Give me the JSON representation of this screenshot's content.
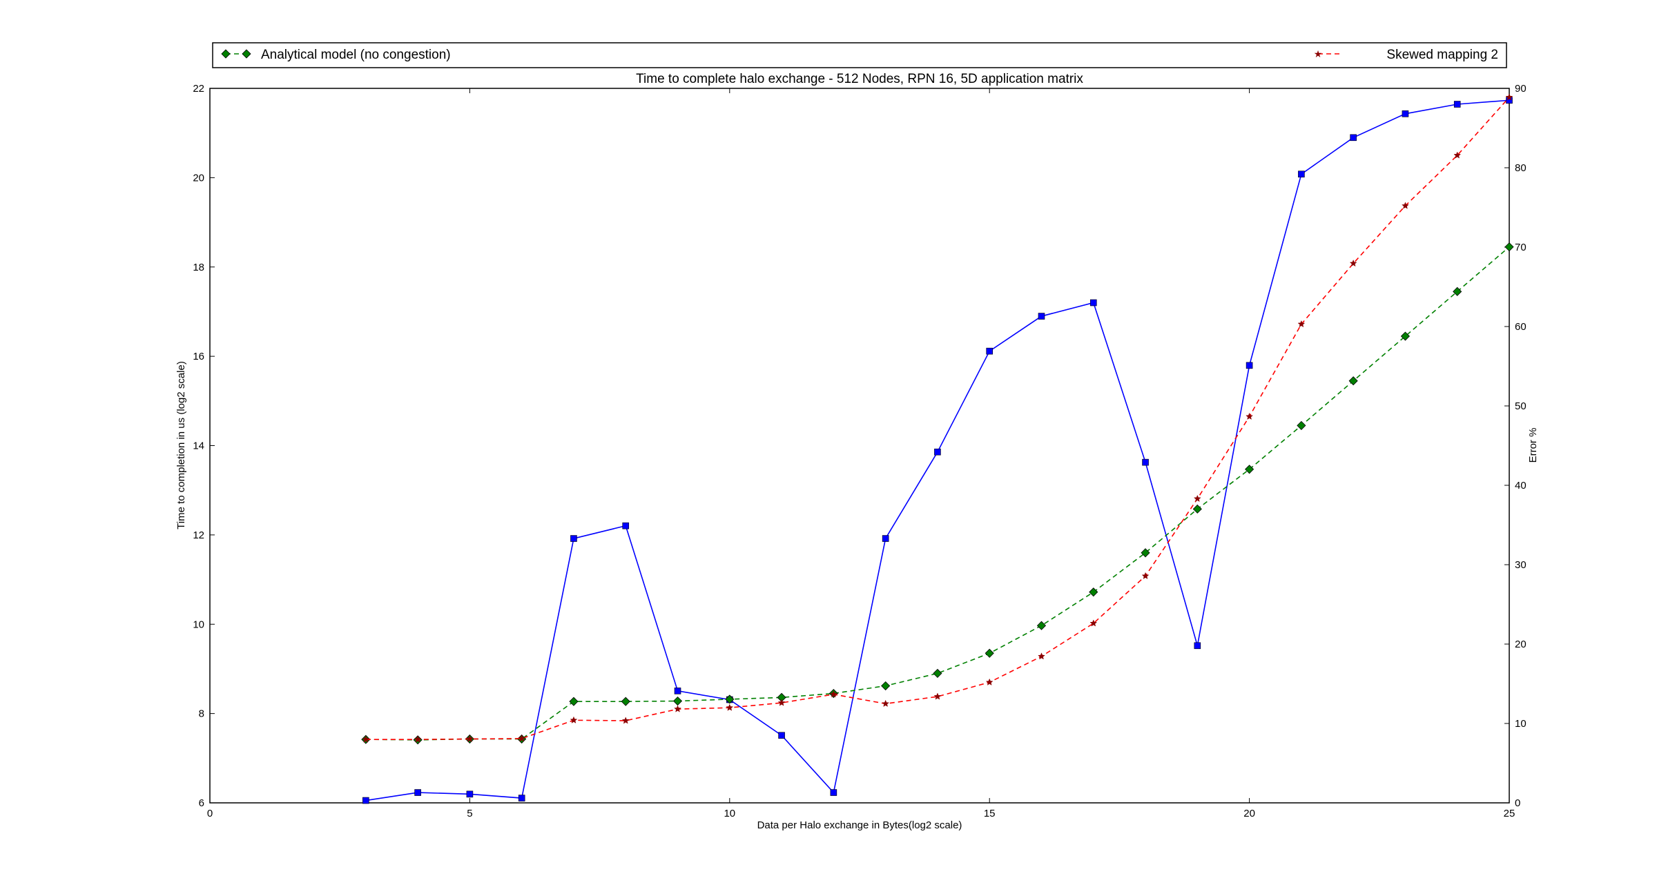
{
  "chart_data": {
    "type": "line",
    "title": "Time to complete halo exchange - 512 Nodes, RPN 16, 5D application matrix",
    "xlabel": "Data per Halo exchange in Bytes(log2 scale)",
    "ylabel": "Time to completion in us (log2 scale)",
    "y2label": "Error %",
    "xlim": [
      0,
      25
    ],
    "ylim": [
      6,
      22
    ],
    "y2lim": [
      0,
      90
    ],
    "x_ticks": [
      0,
      5,
      10,
      15,
      20,
      25
    ],
    "y_ticks": [
      6,
      8,
      10,
      12,
      14,
      16,
      18,
      20,
      22
    ],
    "y2_ticks": [
      0,
      10,
      20,
      30,
      40,
      50,
      60,
      70,
      80,
      90
    ],
    "grid": false,
    "legend_placement": "above plot, spanning width",
    "x": [
      3,
      4,
      5,
      6,
      7,
      8,
      9,
      10,
      11,
      12,
      13,
      14,
      15,
      16,
      17,
      18,
      19,
      20,
      21,
      22,
      23,
      24,
      25
    ],
    "series": [
      {
        "name": "Analytical model (no congestion)",
        "axis": "left",
        "color": "#008000",
        "style": "dashed",
        "marker": "diamond",
        "values": [
          7.42,
          7.41,
          7.43,
          7.43,
          8.27,
          8.27,
          8.28,
          8.32,
          8.36,
          8.45,
          8.62,
          8.9,
          9.35,
          9.97,
          10.72,
          11.6,
          12.58,
          13.47,
          14.45,
          15.45,
          16.45,
          17.45,
          18.45
        ]
      },
      {
        "name": "Skewed mapping 2",
        "axis": "left",
        "color": "#ff0000",
        "style": "dashed",
        "marker": "star",
        "values": [
          7.42,
          7.42,
          7.43,
          7.44,
          7.85,
          7.84,
          8.1,
          8.13,
          8.24,
          8.43,
          8.22,
          8.38,
          8.7,
          9.28,
          10.02,
          11.08,
          12.81,
          14.65,
          16.72,
          18.08,
          19.37,
          20.5,
          21.8
        ]
      },
      {
        "axis": "right",
        "color": "#0000ff",
        "style": "solid",
        "marker": "square",
        "values": [
          0.3,
          1.3,
          1.1,
          0.6,
          33.3,
          34.9,
          14.1,
          13.0,
          8.5,
          1.3,
          33.3,
          44.2,
          56.9,
          61.3,
          63.0,
          42.9,
          19.8,
          55.1,
          79.2,
          83.8,
          86.8,
          88.0,
          88.5
        ]
      }
    ]
  }
}
